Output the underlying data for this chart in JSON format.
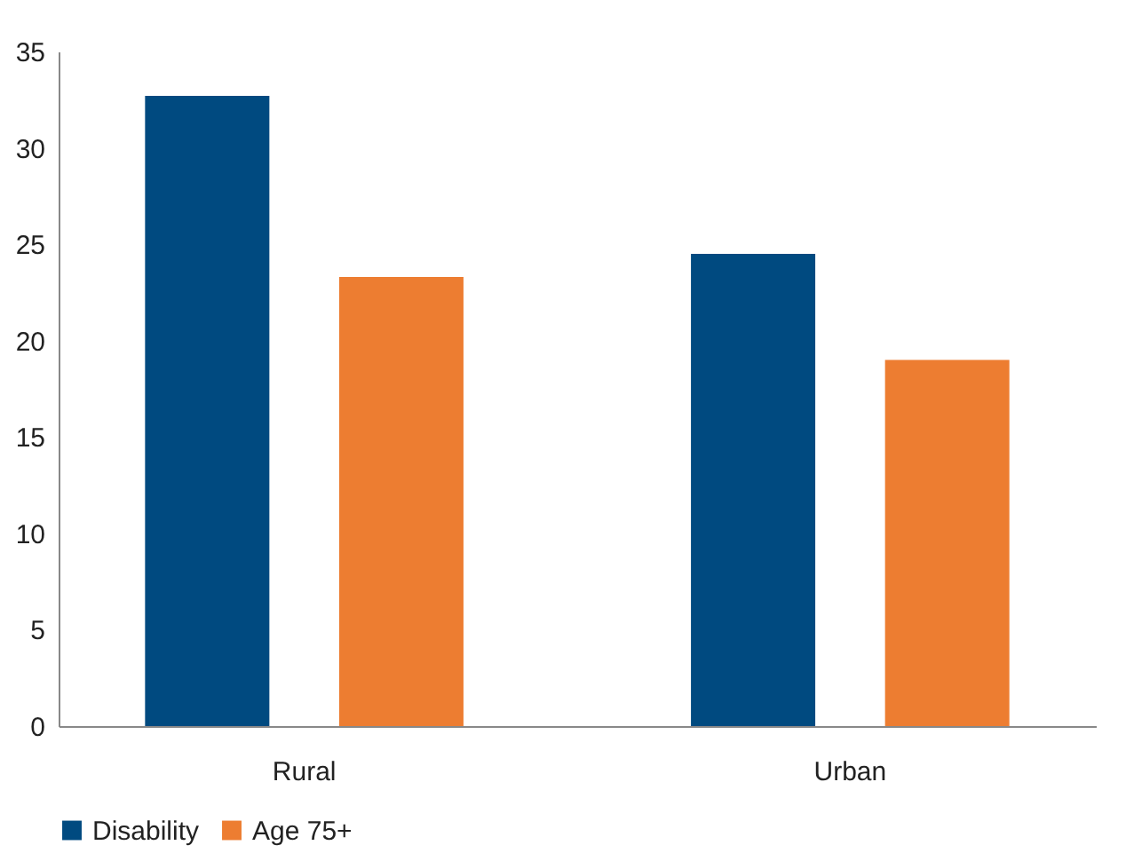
{
  "chart_data": {
    "type": "bar",
    "categories": [
      "Rural",
      "Urban"
    ],
    "series": [
      {
        "name": "Disability",
        "color": "#004a80",
        "values": [
          32.7,
          24.5
        ]
      },
      {
        "name": "Age 75+",
        "color": "#ed7d31",
        "values": [
          23.3,
          19.0
        ]
      }
    ],
    "ylim": [
      0,
      35
    ],
    "yticks": [
      0,
      5,
      10,
      15,
      20,
      25,
      30,
      35
    ],
    "grid": false,
    "legend": "bottom"
  }
}
